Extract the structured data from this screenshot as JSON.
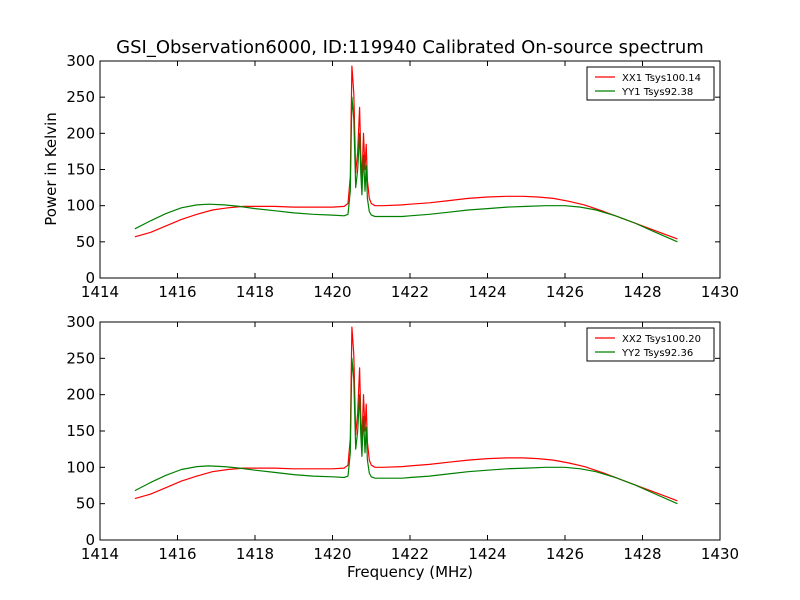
{
  "colors": {
    "xx": "#ff0000",
    "yy": "#008000",
    "axes": "#000000",
    "background": "#ffffff"
  },
  "chart_data": [
    {
      "type": "line",
      "title": "GSI_Observation6000, ID:119940 Calibrated On-source spectrum",
      "xlabel": "",
      "ylabel": "Power in Kelvin",
      "xlim": [
        1414,
        1430
      ],
      "ylim": [
        0,
        300
      ],
      "xticks": [
        1414,
        1416,
        1418,
        1420,
        1422,
        1424,
        1426,
        1428,
        1430
      ],
      "yticks": [
        0,
        50,
        100,
        150,
        200,
        250,
        300
      ],
      "legend_position": "top-right",
      "grid": false,
      "series": [
        {
          "name": "XX1 Tsys100.14",
          "color": "#ff0000",
          "x": [
            1414.9,
            1415.3,
            1415.7,
            1416.1,
            1416.5,
            1416.9,
            1417.3,
            1417.7,
            1418.1,
            1418.5,
            1419.0,
            1419.5,
            1420.0,
            1420.3,
            1420.4,
            1420.46,
            1420.5,
            1420.55,
            1420.6,
            1420.65,
            1420.7,
            1420.73,
            1420.76,
            1420.8,
            1420.84,
            1420.87,
            1420.9,
            1420.95,
            1421.0,
            1421.1,
            1421.3,
            1421.8,
            1422.0,
            1422.5,
            1423.0,
            1423.5,
            1424.0,
            1424.5,
            1424.9,
            1425.3,
            1425.7,
            1426.1,
            1426.5,
            1427.0,
            1427.5,
            1428.0,
            1428.5,
            1428.9
          ],
          "y": [
            57,
            63,
            72,
            81,
            88,
            94,
            97,
            99,
            99,
            99,
            98,
            98,
            98,
            99,
            103,
            140,
            293,
            255,
            145,
            175,
            236,
            170,
            135,
            200,
            150,
            185,
            135,
            110,
            103,
            100,
            100,
            101,
            102,
            104,
            107,
            110,
            112,
            113,
            113,
            112,
            110,
            106,
            101,
            92,
            82,
            72,
            62,
            54
          ]
        },
        {
          "name": "YY1 Tsys92.38",
          "color": "#008000",
          "x": [
            1414.9,
            1415.3,
            1415.7,
            1416.1,
            1416.5,
            1416.8,
            1417.2,
            1417.6,
            1418.0,
            1418.5,
            1419.0,
            1419.5,
            1420.0,
            1420.3,
            1420.4,
            1420.46,
            1420.5,
            1420.55,
            1420.6,
            1420.65,
            1420.7,
            1420.73,
            1420.76,
            1420.8,
            1420.84,
            1420.87,
            1420.9,
            1420.95,
            1421.0,
            1421.1,
            1421.3,
            1421.8,
            1422.0,
            1422.5,
            1423.0,
            1423.5,
            1424.0,
            1424.5,
            1425.0,
            1425.5,
            1426.0,
            1426.4,
            1426.8,
            1427.3,
            1427.8,
            1428.3,
            1428.9
          ],
          "y": [
            68,
            79,
            89,
            97,
            101,
            102,
            101,
            99,
            96,
            93,
            90,
            88,
            87,
            86,
            88,
            120,
            250,
            220,
            125,
            150,
            200,
            145,
            115,
            170,
            120,
            155,
            110,
            92,
            87,
            85,
            85,
            85,
            86,
            88,
            91,
            94,
            96,
            98,
            99,
            100,
            100,
            98,
            94,
            86,
            76,
            64,
            50
          ]
        }
      ]
    },
    {
      "type": "line",
      "title": "",
      "xlabel": "Frequency (MHz)",
      "ylabel": "",
      "xlim": [
        1414,
        1430
      ],
      "ylim": [
        0,
        300
      ],
      "xticks": [
        1414,
        1416,
        1418,
        1420,
        1422,
        1424,
        1426,
        1428,
        1430
      ],
      "yticks": [
        0,
        50,
        100,
        150,
        200,
        250,
        300
      ],
      "legend_position": "top-right",
      "grid": false,
      "series": [
        {
          "name": "XX2 Tsys100.20",
          "color": "#ff0000",
          "x": [
            1414.9,
            1415.3,
            1415.7,
            1416.1,
            1416.5,
            1416.9,
            1417.3,
            1417.7,
            1418.1,
            1418.5,
            1419.0,
            1419.5,
            1420.0,
            1420.3,
            1420.4,
            1420.46,
            1420.5,
            1420.55,
            1420.6,
            1420.65,
            1420.7,
            1420.73,
            1420.76,
            1420.8,
            1420.84,
            1420.87,
            1420.9,
            1420.95,
            1421.0,
            1421.1,
            1421.3,
            1421.8,
            1422.0,
            1422.5,
            1423.0,
            1423.5,
            1424.0,
            1424.5,
            1424.9,
            1425.3,
            1425.7,
            1426.1,
            1426.5,
            1427.0,
            1427.5,
            1428.0,
            1428.5,
            1428.9
          ],
          "y": [
            57,
            63,
            72,
            81,
            88,
            94,
            97,
            99,
            99,
            99,
            98,
            98,
            98,
            99,
            103,
            140,
            293,
            255,
            145,
            175,
            237,
            170,
            135,
            200,
            150,
            187,
            135,
            110,
            103,
            100,
            100,
            101,
            102,
            104,
            107,
            110,
            112,
            113,
            113,
            112,
            110,
            106,
            101,
            92,
            82,
            72,
            62,
            54
          ]
        },
        {
          "name": "YY2 Tsys92.36",
          "color": "#008000",
          "x": [
            1414.9,
            1415.3,
            1415.7,
            1416.1,
            1416.5,
            1416.8,
            1417.2,
            1417.6,
            1418.0,
            1418.5,
            1419.0,
            1419.5,
            1420.0,
            1420.3,
            1420.4,
            1420.46,
            1420.5,
            1420.55,
            1420.6,
            1420.65,
            1420.7,
            1420.73,
            1420.76,
            1420.8,
            1420.84,
            1420.87,
            1420.9,
            1420.95,
            1421.0,
            1421.1,
            1421.3,
            1421.8,
            1422.0,
            1422.5,
            1423.0,
            1423.5,
            1424.0,
            1424.5,
            1425.0,
            1425.5,
            1426.0,
            1426.4,
            1426.8,
            1427.3,
            1427.8,
            1428.3,
            1428.9
          ],
          "y": [
            68,
            79,
            89,
            97,
            101,
            102,
            101,
            99,
            96,
            93,
            90,
            88,
            87,
            86,
            88,
            120,
            250,
            220,
            125,
            150,
            200,
            145,
            115,
            170,
            120,
            155,
            110,
            92,
            87,
            85,
            85,
            85,
            86,
            88,
            91,
            94,
            96,
            98,
            99,
            100,
            100,
            98,
            94,
            86,
            76,
            64,
            50
          ]
        }
      ]
    }
  ]
}
